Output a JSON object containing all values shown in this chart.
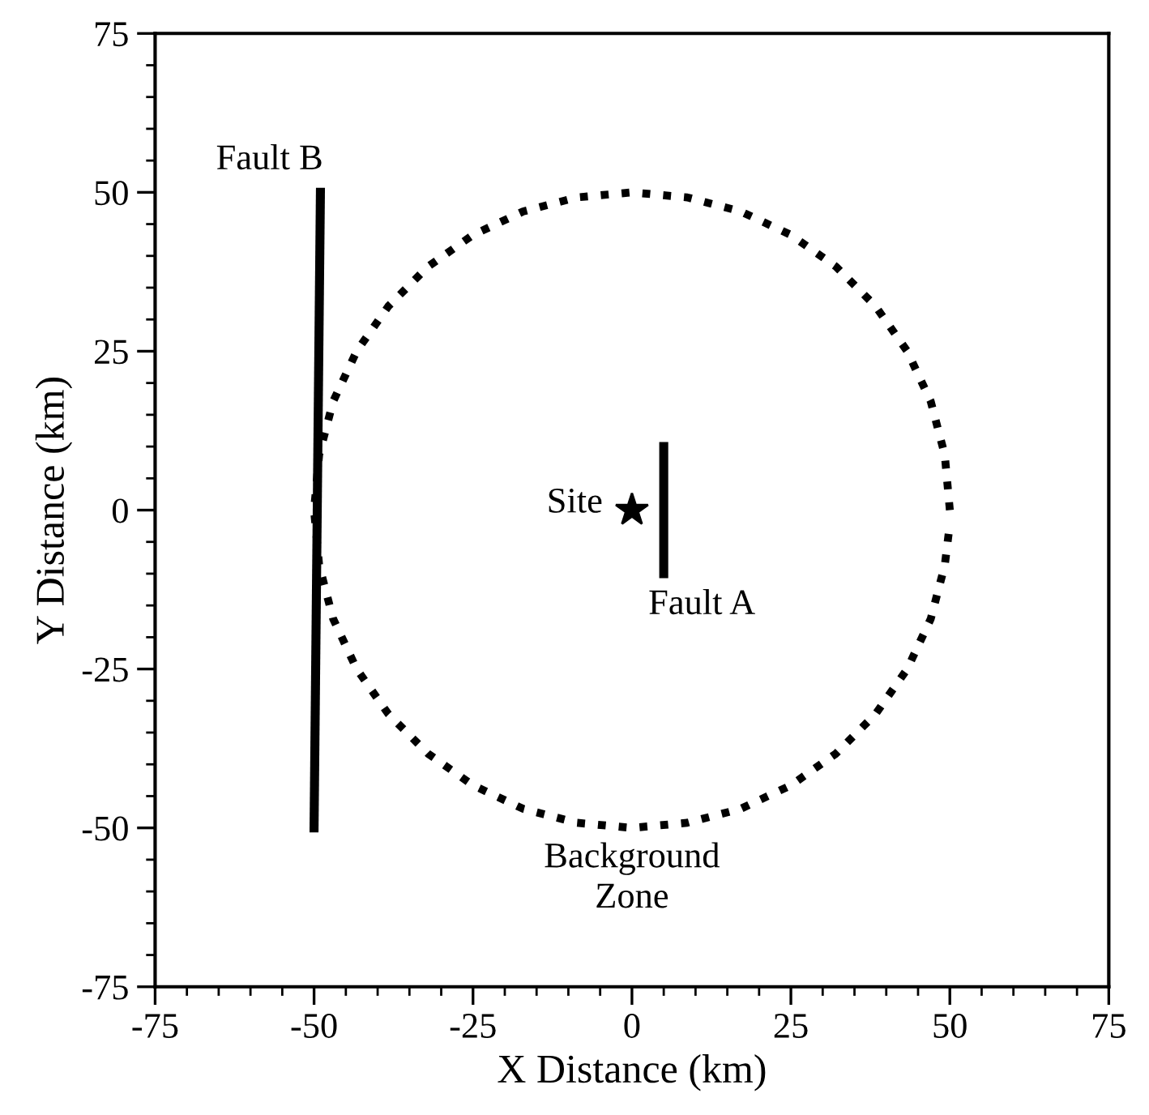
{
  "chart_data": {
    "type": "line",
    "xlabel": "X Distance (km)",
    "ylabel": "Y Distance (km)",
    "xlim": [
      -75,
      75
    ],
    "ylim": [
      -75,
      75
    ],
    "xticks": [
      -75,
      -50,
      -25,
      0,
      25,
      50,
      75
    ],
    "yticks": [
      -75,
      -50,
      -25,
      0,
      25,
      50,
      75
    ],
    "grid": false,
    "legend": false,
    "series": [
      {
        "color": "#000000",
        "line_style": "solid",
        "x": [
          -50,
          -49
        ],
        "values": [
          -50,
          50
        ]
      },
      {
        "color": "#000000",
        "line_style": "solid",
        "x": [
          5,
          5
        ],
        "values": [
          -10,
          10
        ]
      },
      {
        "color": "#000000",
        "line_style": "dotted",
        "x": [
          50,
          49.2,
          47.0,
          43.3,
          38.3,
          32.1,
          25,
          17.1,
          8.7,
          0,
          -8.7,
          -17.1,
          -25,
          -32.1,
          -38.3,
          -43.3,
          -47.0,
          -49.2,
          -50,
          -49.2,
          -47.0,
          -43.3,
          -38.3,
          -32.1,
          -25,
          -17.1,
          -8.7,
          0,
          8.7,
          17.1,
          25,
          32.1,
          38.3,
          43.3,
          47.0,
          49.2,
          49.9
        ],
        "values": [
          0,
          8.7,
          17.1,
          25,
          32.1,
          38.3,
          43.3,
          47.0,
          49.2,
          50,
          49.2,
          47.0,
          43.3,
          38.3,
          32.1,
          25,
          17.1,
          8.7,
          0,
          -8.7,
          -17.1,
          -25,
          -32.1,
          -38.3,
          -43.3,
          -47.0,
          -49.2,
          -50,
          -49.2,
          -47.0,
          -43.3,
          -38.3,
          -32.1,
          -25,
          -17.1,
          -8.7,
          -3
        ]
      },
      {
        "type": "scatter",
        "color": "#000000",
        "marker": "star",
        "x": [
          0
        ],
        "values": [
          0
        ]
      }
    ],
    "annotations": [
      "Fault B",
      "Site",
      "Fault A",
      "Background\nZone"
    ]
  }
}
